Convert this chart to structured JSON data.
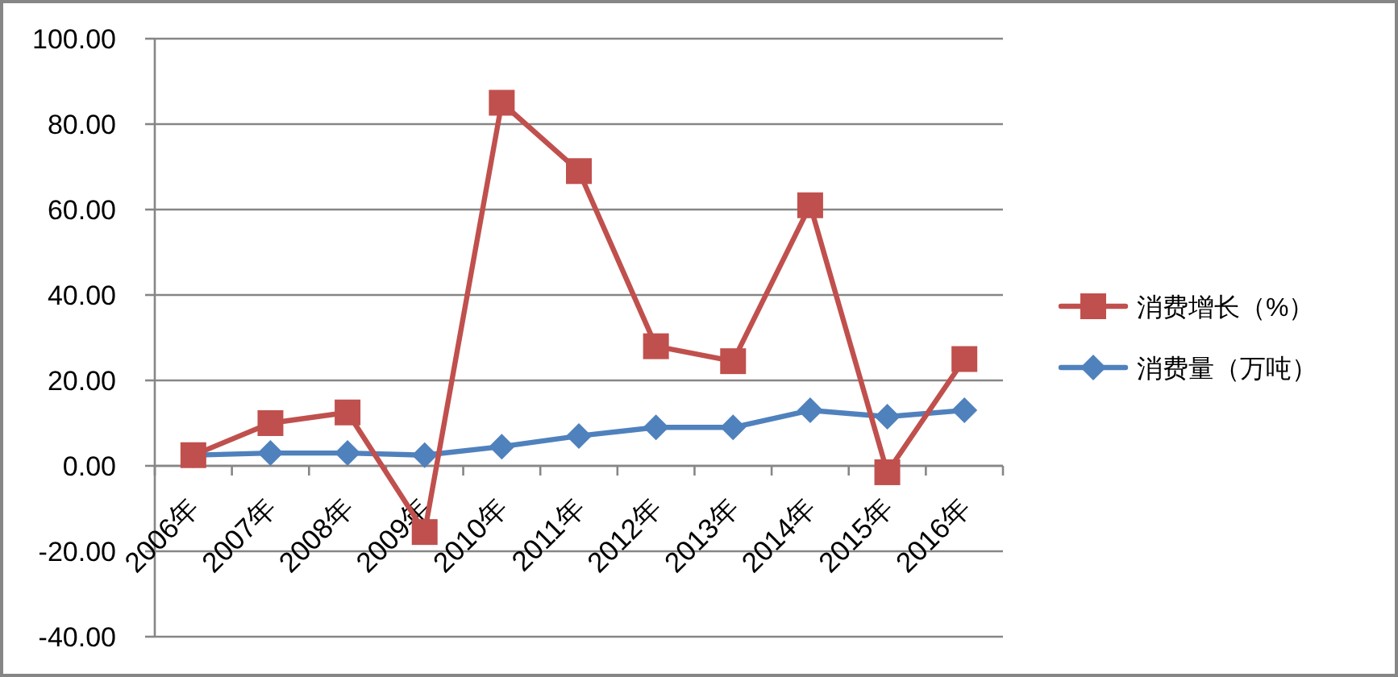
{
  "chart_data": {
    "type": "line",
    "categories": [
      "2006年",
      "2007年",
      "2008年",
      "2009年",
      "2010年",
      "2011年",
      "2012年",
      "2013年",
      "2014年",
      "2015年",
      "2016年"
    ],
    "series": [
      {
        "name": "消费增长（%）",
        "color": "#c0504d",
        "marker": "square",
        "values": [
          2.5,
          10,
          12.5,
          -15.5,
          85,
          69,
          28,
          24.5,
          61,
          -1.5,
          25
        ]
      },
      {
        "name": "消费量（万吨）",
        "color": "#4f81bd",
        "marker": "diamond",
        "values": [
          2.5,
          3,
          3,
          2.5,
          4.5,
          7,
          9,
          9,
          13,
          11.5,
          13
        ]
      }
    ],
    "ylim": [
      -40,
      100
    ],
    "yticks": [
      {
        "value": -40,
        "label": "-40.00"
      },
      {
        "value": -20,
        "label": "-20.00"
      },
      {
        "value": 0,
        "label": "0.00"
      },
      {
        "value": 20,
        "label": "20.00"
      },
      {
        "value": 40,
        "label": "40.00"
      },
      {
        "value": 60,
        "label": "60.00"
      },
      {
        "value": 80,
        "label": "80.00"
      },
      {
        "value": 100,
        "label": "100.00"
      }
    ],
    "grid": "y",
    "legend": "right"
  }
}
